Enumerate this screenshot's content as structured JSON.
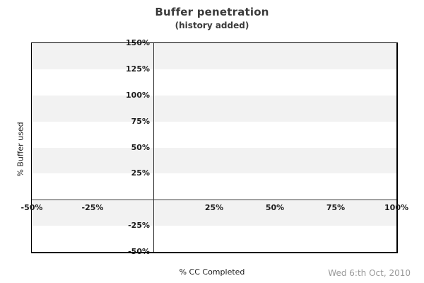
{
  "window": {
    "datestamp": "Wed 6:th Oct, 2010"
  },
  "chart_data": {
    "type": "line",
    "title": "Buffer penetration",
    "subtitle": "(history added)",
    "xlabel": "% CC Completed",
    "ylabel": "% Buffer used",
    "xlim": [
      -50,
      100
    ],
    "ylim": [
      -50,
      150
    ],
    "xticks": [
      {
        "value": -50,
        "label": "-50%"
      },
      {
        "value": -25,
        "label": "-25%"
      },
      {
        "value": 25,
        "label": "25%"
      },
      {
        "value": 50,
        "label": "50%"
      },
      {
        "value": 75,
        "label": "75%"
      },
      {
        "value": 100,
        "label": "100%"
      }
    ],
    "yticks": [
      {
        "value": 150,
        "label": "150%"
      },
      {
        "value": 125,
        "label": "125%"
      },
      {
        "value": 100,
        "label": "100%"
      },
      {
        "value": 75,
        "label": "75%"
      },
      {
        "value": 50,
        "label": "50%"
      },
      {
        "value": 25,
        "label": "25%"
      },
      {
        "value": -25,
        "label": "-25%"
      },
      {
        "value": -50,
        "label": "-50%"
      }
    ],
    "shaded_y_bands": [
      [
        125,
        150
      ],
      [
        75,
        100
      ],
      [
        25,
        50
      ],
      [
        -25,
        0
      ]
    ],
    "axes_cross_at": [
      0,
      0
    ],
    "grid": "horizontal-stripes",
    "legend": "none",
    "series": [],
    "colors": {
      "background": "#ffffff",
      "stripe": "#f2f2f2",
      "frame": "#000000",
      "axis_line": "#3c3c3c",
      "tick_text": "#1c1c1c",
      "title_text": "#3b3b3b",
      "label_text": "#1c1c1c",
      "date_text": "#999999"
    }
  }
}
